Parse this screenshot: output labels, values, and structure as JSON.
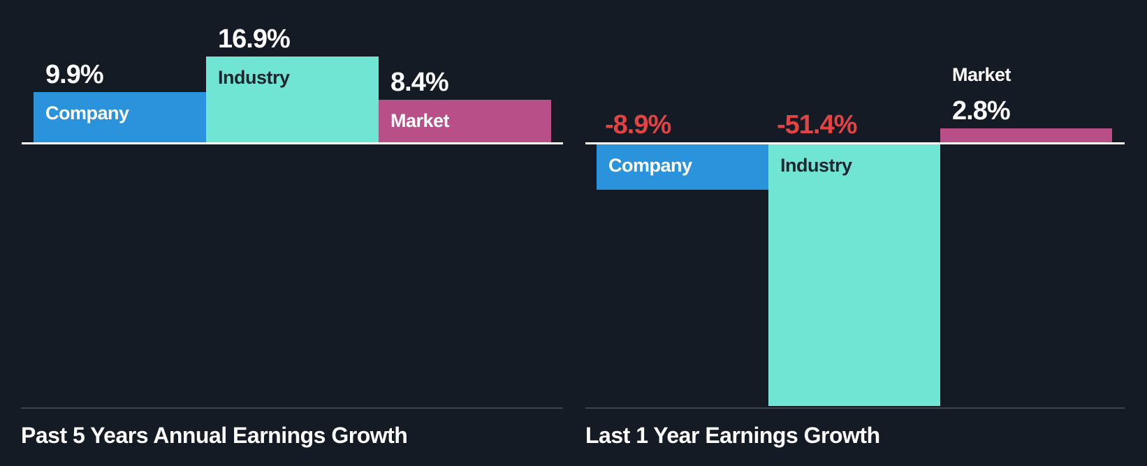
{
  "colors": {
    "background": "#151B24",
    "baseline": "#FFFFFF",
    "divider": "#3E444C",
    "company": "#2A93DB",
    "industry": "#70E5D3",
    "market": "#B94F88",
    "negative_value_text": "#E14444",
    "positive_value_text": "#FFFFFF",
    "label_on_industry": "#1C2632"
  },
  "chart_data": [
    {
      "type": "bar",
      "title": "Past 5 Years Annual Earnings Growth",
      "categories": [
        "Company",
        "Industry",
        "Market"
      ],
      "values": [
        9.9,
        16.9,
        8.4
      ],
      "value_labels": [
        "9.9%",
        "16.9%",
        "8.4%"
      ],
      "unit": "%",
      "baseline_value": 0,
      "grid": "off",
      "axes_ticks": "none",
      "legend": "none",
      "series_colors": {
        "Company": "#2A93DB",
        "Industry": "#70E5D3",
        "Market": "#B94F88"
      }
    },
    {
      "type": "bar",
      "title": "Last 1 Year Earnings Growth",
      "categories": [
        "Company",
        "Industry",
        "Market"
      ],
      "values": [
        -8.9,
        -51.4,
        2.8
      ],
      "value_labels": [
        "-8.9%",
        "-51.4%",
        "2.8%"
      ],
      "unit": "%",
      "baseline_value": 0,
      "grid": "off",
      "axes_ticks": "none",
      "legend": "none",
      "series_colors": {
        "Company": "#2A93DB",
        "Industry": "#70E5D3",
        "Market": "#B94F88"
      }
    }
  ]
}
